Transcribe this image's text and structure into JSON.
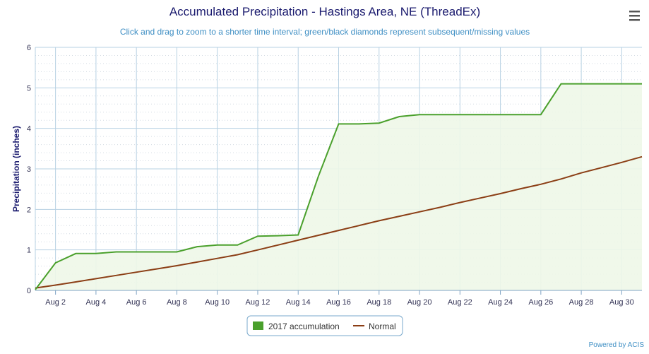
{
  "chart_data": {
    "type": "line",
    "title": "Accumulated Precipitation - Hastings Area, NE (ThreadEx)",
    "subtitle": "Click and drag to zoom to a shorter time interval; green/black diamonds represent subsequent/missing values",
    "xlabel": "",
    "ylabel": "Precipitation (inches)",
    "ylim": [
      0,
      6
    ],
    "yticks": [
      0,
      1,
      2,
      3,
      4,
      5,
      6
    ],
    "xlim": [
      1,
      31
    ],
    "xticks": [
      {
        "day": 2,
        "label": "Aug 2"
      },
      {
        "day": 4,
        "label": "Aug 4"
      },
      {
        "day": 6,
        "label": "Aug 6"
      },
      {
        "day": 8,
        "label": "Aug 8"
      },
      {
        "day": 10,
        "label": "Aug 10"
      },
      {
        "day": 12,
        "label": "Aug 12"
      },
      {
        "day": 14,
        "label": "Aug 14"
      },
      {
        "day": 16,
        "label": "Aug 16"
      },
      {
        "day": 18,
        "label": "Aug 18"
      },
      {
        "day": 20,
        "label": "Aug 20"
      },
      {
        "day": 22,
        "label": "Aug 22"
      },
      {
        "day": 24,
        "label": "Aug 24"
      },
      {
        "day": 26,
        "label": "Aug 26"
      },
      {
        "day": 28,
        "label": "Aug 28"
      },
      {
        "day": 30,
        "label": "Aug 30"
      }
    ],
    "grid": true,
    "legend_position": "bottom-center",
    "series": [
      {
        "name": "2017 accumulation",
        "color": "#4aa02c",
        "fill": "#eef7e8",
        "x": [
          1,
          2,
          3,
          4,
          5,
          6,
          7,
          8,
          9,
          10,
          11,
          12,
          13,
          14,
          15,
          16,
          17,
          18,
          19,
          20,
          21,
          22,
          23,
          24,
          25,
          26,
          27,
          28,
          29,
          30,
          31
        ],
        "values": [
          0.02,
          0.68,
          0.91,
          0.91,
          0.95,
          0.95,
          0.95,
          0.95,
          1.08,
          1.12,
          1.12,
          1.34,
          1.35,
          1.37,
          2.82,
          4.11,
          4.11,
          4.13,
          4.29,
          4.34,
          4.34,
          4.34,
          4.34,
          4.34,
          4.34,
          4.34,
          5.1,
          5.1,
          5.1,
          5.1,
          5.1
        ]
      },
      {
        "name": "Normal",
        "color": "#8b3e15",
        "x": [
          1,
          2,
          3,
          4,
          5,
          6,
          7,
          8,
          9,
          10,
          11,
          12,
          13,
          14,
          15,
          16,
          17,
          18,
          19,
          20,
          21,
          22,
          23,
          24,
          25,
          26,
          27,
          28,
          29,
          30,
          31
        ],
        "values": [
          0.06,
          0.13,
          0.21,
          0.29,
          0.37,
          0.45,
          0.53,
          0.61,
          0.7,
          0.79,
          0.88,
          1.0,
          1.12,
          1.24,
          1.36,
          1.48,
          1.6,
          1.72,
          1.83,
          1.94,
          2.05,
          2.17,
          2.28,
          2.39,
          2.51,
          2.62,
          2.75,
          2.9,
          3.03,
          3.16,
          3.3
        ]
      }
    ]
  },
  "menu_icon": "hamburger-menu-icon",
  "credits": "Powered by ACIS"
}
